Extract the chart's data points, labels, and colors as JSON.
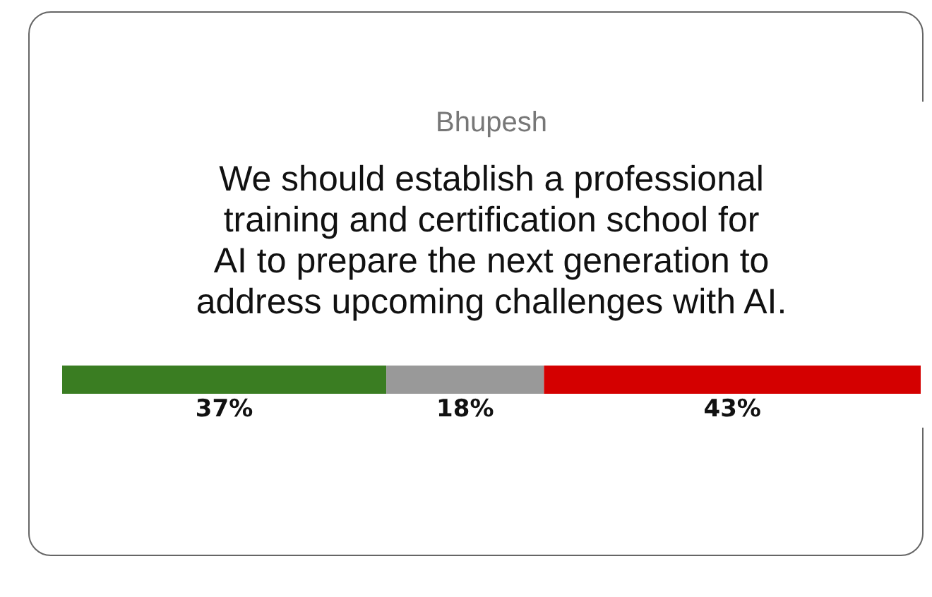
{
  "chart_data": {
    "type": "bar",
    "orientation": "horizontal",
    "stacked": true,
    "title": "Bhupesh",
    "subtitle": "We should establish a professional training and certification school for AI to prepare the next generation to address upcoming challenges with AI.",
    "categories": [
      null
    ],
    "series": [
      {
        "color": "#3a7d22",
        "values": [
          37
        ],
        "value_labels": [
          "37%"
        ]
      },
      {
        "color": "#999999",
        "values": [
          18
        ],
        "value_labels": [
          "18%"
        ]
      },
      {
        "color": "#d40000",
        "values": [
          43
        ],
        "value_labels": [
          "43%"
        ]
      }
    ]
  }
}
